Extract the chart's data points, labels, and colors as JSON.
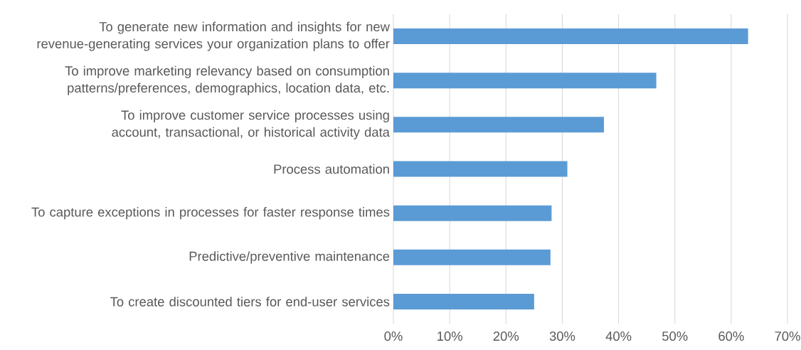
{
  "chart_data": {
    "type": "bar",
    "orientation": "horizontal",
    "categories": [
      "To generate new information and insights for new revenue-generating services your organization plans to offer",
      "To improve marketing relevancy based on consumption patterns/preferences, demographics, location data, etc.",
      "To improve customer service processes using account, transactional, or historical activity data",
      "Process automation",
      "To capture exceptions in processes for faster response times",
      "Predictive/preventive maintenance",
      "To create discounted tiers for end-user services"
    ],
    "values": [
      63,
      46.7,
      37.4,
      30.9,
      28.1,
      27.9,
      25.0
    ],
    "color": "#5b9bd5",
    "xlim": [
      0,
      70
    ],
    "xticks": [
      {
        "value": 0,
        "label": "0%"
      },
      {
        "value": 10,
        "label": "10%"
      },
      {
        "value": 20,
        "label": "20%"
      },
      {
        "value": 30,
        "label": "30%"
      },
      {
        "value": 40,
        "label": "40%"
      },
      {
        "value": 50,
        "label": "50%"
      },
      {
        "value": 60,
        "label": "60%"
      },
      {
        "value": 70,
        "label": "70%"
      }
    ],
    "grid": "x"
  }
}
